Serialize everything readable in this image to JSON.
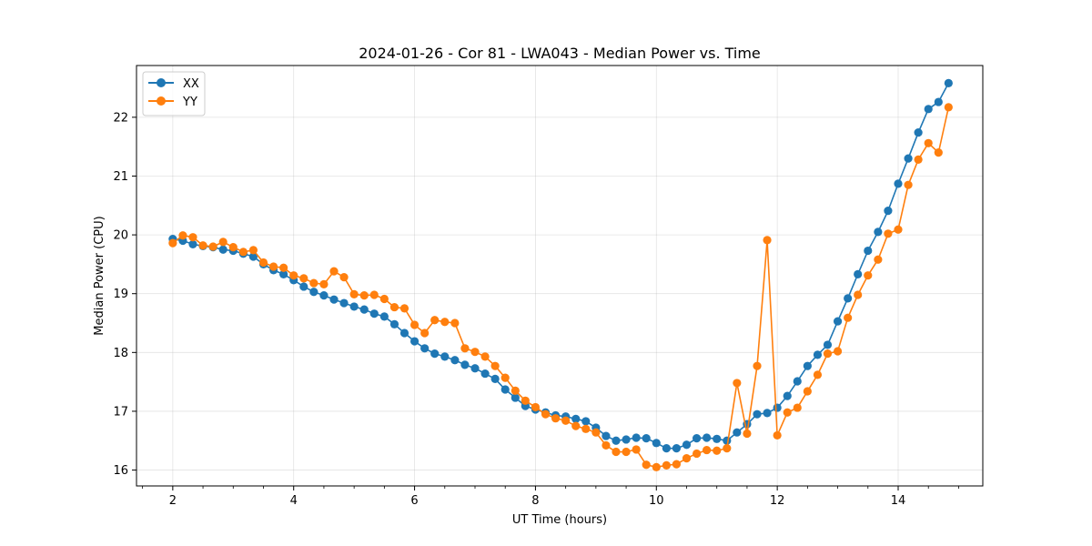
{
  "chart_data": {
    "type": "line",
    "title": "2024-01-26 - Cor 81 - LWA043 - Median Power vs. Time",
    "xlabel": "UT Time (hours)",
    "ylabel": "Median Power (CPU)",
    "xlim": [
      1.4,
      15.4
    ],
    "ylim": [
      15.73,
      22.88
    ],
    "xticks": [
      2,
      4,
      6,
      8,
      10,
      12,
      14
    ],
    "xtick_labels": [
      "2",
      "4",
      "6",
      "8",
      "10",
      "12",
      "14"
    ],
    "yticks": [
      16,
      17,
      18,
      19,
      20,
      21,
      22
    ],
    "ytick_labels": [
      "16",
      "17",
      "18",
      "19",
      "20",
      "21",
      "22"
    ],
    "grid": true,
    "legend_position": "top-left",
    "x": [
      2.0,
      2.167,
      2.333,
      2.5,
      2.667,
      2.833,
      3.0,
      3.167,
      3.333,
      3.5,
      3.667,
      3.833,
      4.0,
      4.167,
      4.333,
      4.5,
      4.667,
      4.833,
      5.0,
      5.167,
      5.333,
      5.5,
      5.667,
      5.833,
      6.0,
      6.167,
      6.333,
      6.5,
      6.667,
      6.833,
      7.0,
      7.167,
      7.333,
      7.5,
      7.667,
      7.833,
      8.0,
      8.167,
      8.333,
      8.5,
      8.667,
      8.833,
      9.0,
      9.167,
      9.333,
      9.5,
      9.667,
      9.833,
      10.0,
      10.167,
      10.333,
      10.5,
      10.667,
      10.833,
      11.0,
      11.167,
      11.333,
      11.5,
      11.667,
      11.833,
      12.0,
      12.167,
      12.333,
      12.5,
      12.667,
      12.833,
      13.0,
      13.167,
      13.333,
      13.5,
      13.667,
      13.833,
      14.0,
      14.167,
      14.333,
      14.5,
      14.667,
      14.833
    ],
    "series": [
      {
        "name": "XX",
        "color": "#1f77b4",
        "values": [
          19.93,
          19.9,
          19.84,
          19.81,
          19.79,
          19.75,
          19.73,
          19.68,
          19.63,
          19.5,
          19.4,
          19.33,
          19.23,
          19.12,
          19.03,
          18.97,
          18.9,
          18.84,
          18.78,
          18.73,
          18.66,
          18.61,
          18.48,
          18.33,
          18.19,
          18.07,
          17.98,
          17.93,
          17.87,
          17.79,
          17.73,
          17.64,
          17.55,
          17.37,
          17.23,
          17.09,
          17.03,
          16.98,
          16.93,
          16.91,
          16.87,
          16.83,
          16.72,
          16.58,
          16.5,
          16.52,
          16.55,
          16.54,
          16.46,
          16.37,
          16.37,
          16.43,
          16.54,
          16.55,
          16.53,
          16.5,
          16.64,
          16.78,
          16.95,
          16.97,
          17.06,
          17.26,
          17.51,
          17.77,
          17.96,
          18.13,
          18.53,
          18.92,
          19.33,
          19.73,
          20.05,
          20.41,
          20.87,
          21.3,
          21.74,
          22.14,
          22.26,
          22.58
        ]
      },
      {
        "name": "YY",
        "color": "#ff7f0e",
        "values": [
          19.86,
          19.99,
          19.96,
          19.82,
          19.8,
          19.88,
          19.79,
          19.71,
          19.74,
          19.53,
          19.46,
          19.44,
          19.31,
          19.26,
          19.18,
          19.16,
          19.38,
          19.28,
          18.99,
          18.97,
          18.98,
          18.91,
          18.77,
          18.75,
          18.47,
          18.33,
          18.55,
          18.52,
          18.5,
          18.07,
          18.01,
          17.93,
          17.77,
          17.57,
          17.35,
          17.18,
          17.07,
          16.95,
          16.88,
          16.84,
          16.75,
          16.7,
          16.64,
          16.42,
          16.31,
          16.31,
          16.35,
          16.09,
          16.05,
          16.08,
          16.1,
          16.2,
          16.28,
          16.34,
          16.33,
          16.37,
          17.48,
          16.62,
          17.77,
          19.91,
          16.59,
          16.98,
          17.06,
          17.34,
          17.62,
          17.98,
          18.02,
          18.59,
          18.98,
          19.31,
          19.58,
          20.02,
          20.09,
          20.85,
          21.28,
          21.56,
          21.4,
          22.17
        ]
      }
    ]
  }
}
